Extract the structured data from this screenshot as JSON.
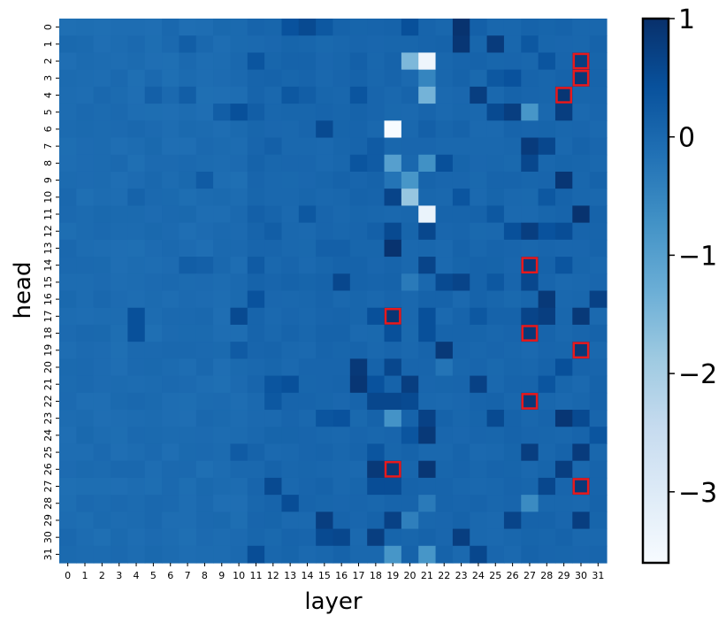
{
  "chart_data": {
    "type": "heatmap",
    "xlabel": "layer",
    "ylabel": "head",
    "x_categories": [
      "0",
      "1",
      "2",
      "3",
      "4",
      "5",
      "6",
      "7",
      "8",
      "9",
      "10",
      "11",
      "12",
      "13",
      "14",
      "15",
      "16",
      "17",
      "18",
      "19",
      "20",
      "21",
      "22",
      "23",
      "24",
      "25",
      "26",
      "27",
      "28",
      "29",
      "30",
      "31"
    ],
    "y_categories": [
      "0",
      "1",
      "2",
      "3",
      "4",
      "5",
      "6",
      "7",
      "8",
      "9",
      "10",
      "11",
      "12",
      "13",
      "14",
      "15",
      "16",
      "17",
      "18",
      "19",
      "20",
      "21",
      "22",
      "23",
      "24",
      "25",
      "26",
      "27",
      "28",
      "29",
      "30",
      "31"
    ],
    "colorbar": {
      "min": -3.6,
      "max": 1.0,
      "ticks": [
        1,
        0,
        -1,
        -2,
        -3
      ],
      "tick_labels": [
        "1",
        "0",
        "−1",
        "−2",
        "−3"
      ]
    },
    "colormap": [
      "#f7fbff",
      "#deebf7",
      "#c6dbef",
      "#9ecae1",
      "#6baed6",
      "#4292c6",
      "#2171b5",
      "#08519c",
      "#08306b"
    ],
    "highlight_color": "#e8191c",
    "base_value": 0.0,
    "values_sparse": [
      [
        0,
        13,
        0.4
      ],
      [
        0,
        14,
        0.55
      ],
      [
        0,
        15,
        0.3
      ],
      [
        0,
        20,
        0.45
      ],
      [
        0,
        23,
        0.95
      ],
      [
        0,
        24,
        0.15
      ],
      [
        1,
        7,
        0.2
      ],
      [
        1,
        20,
        0.05
      ],
      [
        1,
        23,
        0.9
      ],
      [
        1,
        25,
        0.8
      ],
      [
        1,
        27,
        0.3
      ],
      [
        2,
        11,
        0.35
      ],
      [
        2,
        17,
        0.15
      ],
      [
        2,
        20,
        -1.5
      ],
      [
        2,
        21,
        -3.4
      ],
      [
        2,
        28,
        0.35
      ],
      [
        2,
        30,
        0.75
      ],
      [
        3,
        21,
        -0.5
      ],
      [
        3,
        25,
        0.3
      ],
      [
        3,
        26,
        0.4
      ],
      [
        3,
        30,
        0.85
      ],
      [
        4,
        5,
        0.15
      ],
      [
        4,
        7,
        0.2
      ],
      [
        4,
        13,
        0.3
      ],
      [
        4,
        14,
        0.2
      ],
      [
        4,
        17,
        0.35
      ],
      [
        4,
        21,
        -1.4
      ],
      [
        4,
        24,
        0.75
      ],
      [
        4,
        29,
        0.9
      ],
      [
        5,
        9,
        0.2
      ],
      [
        5,
        10,
        0.45
      ],
      [
        5,
        11,
        0.2
      ],
      [
        5,
        25,
        0.55
      ],
      [
        5,
        26,
        0.75
      ],
      [
        5,
        27,
        -0.8
      ],
      [
        5,
        29,
        0.75
      ],
      [
        6,
        15,
        0.55
      ],
      [
        6,
        19,
        -3.6
      ],
      [
        6,
        21,
        0.15
      ],
      [
        7,
        12,
        0.15
      ],
      [
        7,
        18,
        0.25
      ],
      [
        7,
        27,
        0.8
      ],
      [
        7,
        28,
        0.6
      ],
      [
        8,
        17,
        0.35
      ],
      [
        8,
        18,
        0.25
      ],
      [
        8,
        19,
        -1.0
      ],
      [
        8,
        21,
        -0.7
      ],
      [
        8,
        22,
        0.45
      ],
      [
        8,
        27,
        0.6
      ],
      [
        9,
        8,
        0.25
      ],
      [
        9,
        19,
        -0.2
      ],
      [
        9,
        20,
        -0.8
      ],
      [
        9,
        29,
        0.9
      ],
      [
        10,
        4,
        0.1
      ],
      [
        10,
        19,
        0.65
      ],
      [
        10,
        20,
        -1.8
      ],
      [
        10,
        23,
        0.35
      ],
      [
        10,
        28,
        0.3
      ],
      [
        11,
        11,
        0.15
      ],
      [
        11,
        14,
        0.3
      ],
      [
        11,
        21,
        -3.3
      ],
      [
        11,
        25,
        0.3
      ],
      [
        11,
        30,
        0.95
      ],
      [
        12,
        12,
        0.2
      ],
      [
        12,
        18,
        0.15
      ],
      [
        12,
        19,
        0.55
      ],
      [
        12,
        21,
        0.6
      ],
      [
        12,
        26,
        0.45
      ],
      [
        12,
        27,
        0.75
      ],
      [
        12,
        28,
        0.4
      ],
      [
        12,
        29,
        0.5
      ],
      [
        13,
        15,
        0.15
      ],
      [
        13,
        16,
        0.15
      ],
      [
        13,
        19,
        0.95
      ],
      [
        14,
        7,
        0.2
      ],
      [
        14,
        8,
        0.15
      ],
      [
        14,
        11,
        0.25
      ],
      [
        14,
        21,
        0.65
      ],
      [
        14,
        27,
        0.8
      ],
      [
        14,
        29,
        0.35
      ],
      [
        15,
        16,
        0.6
      ],
      [
        15,
        20,
        -0.3
      ],
      [
        15,
        22,
        0.55
      ],
      [
        15,
        23,
        0.65
      ],
      [
        15,
        25,
        0.3
      ],
      [
        15,
        27,
        0.6
      ],
      [
        16,
        11,
        0.4
      ],
      [
        16,
        28,
        0.85
      ],
      [
        16,
        31,
        0.7
      ],
      [
        17,
        4,
        0.45
      ],
      [
        17,
        10,
        0.55
      ],
      [
        17,
        18,
        0.45
      ],
      [
        17,
        19,
        0.9
      ],
      [
        17,
        21,
        0.45
      ],
      [
        17,
        24,
        0.3
      ],
      [
        17,
        27,
        0.65
      ],
      [
        17,
        28,
        0.75
      ],
      [
        17,
        30,
        0.85
      ],
      [
        18,
        4,
        0.45
      ],
      [
        18,
        19,
        0.45
      ],
      [
        18,
        21,
        0.45
      ],
      [
        18,
        27,
        0.85
      ],
      [
        19,
        10,
        0.25
      ],
      [
        19,
        22,
        0.85
      ],
      [
        19,
        30,
        0.85
      ],
      [
        20,
        17,
        0.85
      ],
      [
        20,
        19,
        0.6
      ],
      [
        20,
        22,
        -0.2
      ],
      [
        20,
        29,
        0.45
      ],
      [
        21,
        12,
        0.35
      ],
      [
        21,
        13,
        0.45
      ],
      [
        21,
        17,
        0.9
      ],
      [
        21,
        18,
        0.4
      ],
      [
        21,
        20,
        0.75
      ],
      [
        21,
        24,
        0.7
      ],
      [
        21,
        28,
        0.35
      ],
      [
        22,
        12,
        0.3
      ],
      [
        22,
        18,
        0.6
      ],
      [
        22,
        19,
        0.6
      ],
      [
        22,
        20,
        0.55
      ],
      [
        22,
        27,
        0.85
      ],
      [
        23,
        15,
        0.35
      ],
      [
        23,
        16,
        0.4
      ],
      [
        23,
        19,
        -0.75
      ],
      [
        23,
        21,
        0.7
      ],
      [
        23,
        25,
        0.55
      ],
      [
        23,
        29,
        0.9
      ],
      [
        23,
        30,
        0.55
      ],
      [
        24,
        20,
        0.35
      ],
      [
        24,
        21,
        0.85
      ],
      [
        24,
        31,
        0.35
      ],
      [
        25,
        10,
        0.25
      ],
      [
        25,
        18,
        0.35
      ],
      [
        25,
        27,
        0.75
      ],
      [
        25,
        30,
        0.8
      ],
      [
        26,
        18,
        0.85
      ],
      [
        26,
        19,
        0.85
      ],
      [
        26,
        21,
        0.9
      ],
      [
        26,
        29,
        0.75
      ],
      [
        27,
        12,
        0.55
      ],
      [
        27,
        18,
        0.5
      ],
      [
        27,
        19,
        0.5
      ],
      [
        27,
        28,
        0.6
      ],
      [
        27,
        30,
        0.85
      ],
      [
        28,
        13,
        0.5
      ],
      [
        28,
        21,
        -0.3
      ],
      [
        28,
        27,
        -0.6
      ],
      [
        29,
        15,
        0.75
      ],
      [
        29,
        19,
        0.7
      ],
      [
        29,
        20,
        -0.4
      ],
      [
        29,
        26,
        0.65
      ],
      [
        29,
        30,
        0.75
      ],
      [
        30,
        15,
        0.55
      ],
      [
        30,
        16,
        0.6
      ],
      [
        30,
        18,
        0.75
      ],
      [
        30,
        23,
        0.75
      ],
      [
        31,
        11,
        0.5
      ],
      [
        31,
        19,
        -0.8
      ],
      [
        31,
        21,
        -0.8
      ],
      [
        31,
        24,
        0.6
      ]
    ],
    "highlighted_cells": [
      [
        2,
        30
      ],
      [
        3,
        30
      ],
      [
        4,
        29
      ],
      [
        14,
        27
      ],
      [
        17,
        19
      ],
      [
        18,
        27
      ],
      [
        19,
        30
      ],
      [
        22,
        27
      ],
      [
        26,
        19
      ],
      [
        27,
        30
      ]
    ]
  }
}
